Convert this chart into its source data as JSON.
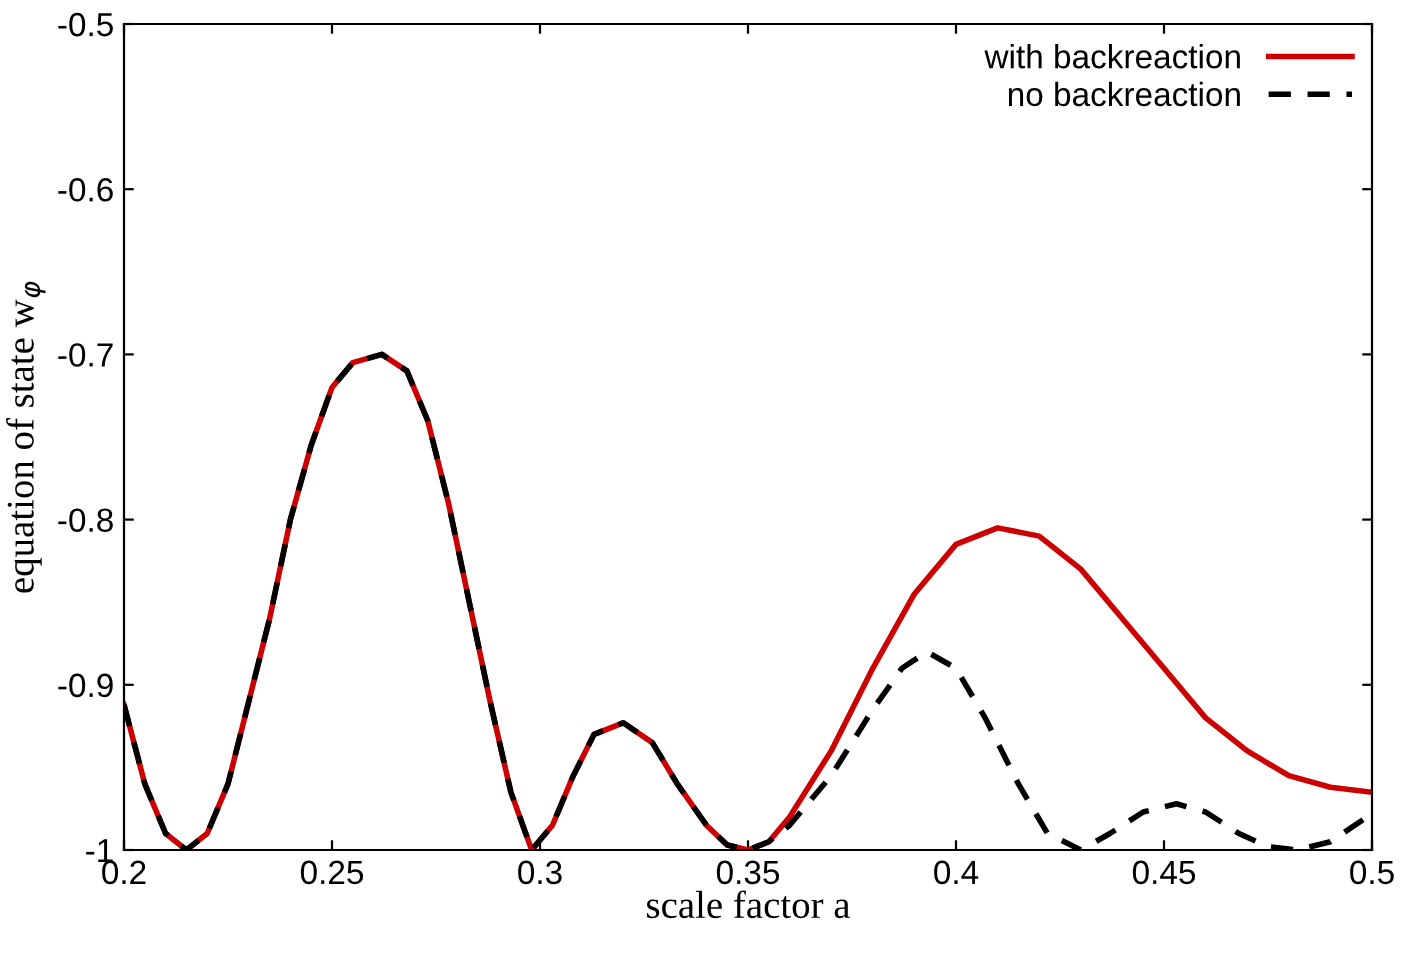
{
  "chart_data": {
    "type": "line",
    "xlabel": "scale factor a",
    "ylabel": "equation of state w$_{φ}$",
    "xlim": [
      0.2,
      0.5
    ],
    "xticks": [
      0.2,
      0.25,
      0.3,
      0.35,
      0.4,
      0.45,
      0.5
    ],
    "ylim": [
      -1,
      -0.5
    ],
    "yticks": [
      {
        "value": -1,
        "label": "-1"
      },
      {
        "value": -0.9,
        "label": "-0.9"
      },
      {
        "value": -0.8,
        "label": "-0.8"
      },
      {
        "value": -0.7,
        "label": "-0.7"
      },
      {
        "value": -0.6,
        "label": "-0.6"
      },
      {
        "value": -0.5,
        "label": "-0.5"
      }
    ],
    "grid": false,
    "legend": "top right",
    "marker": "none",
    "series": [
      {
        "name": "with backreaction",
        "color": "#cc0000",
        "line_style": "solid",
        "x": [
          0.2,
          0.205,
          0.21,
          0.215,
          0.22,
          0.225,
          0.23,
          0.235,
          0.24,
          0.245,
          0.25,
          0.255,
          0.262,
          0.268,
          0.273,
          0.278,
          0.283,
          0.288,
          0.293,
          0.298,
          0.303,
          0.308,
          0.313,
          0.32,
          0.327,
          0.333,
          0.34,
          0.345,
          0.35,
          0.355,
          0.36,
          0.37,
          0.38,
          0.39,
          0.4,
          0.41,
          0.42,
          0.43,
          0.44,
          0.45,
          0.46,
          0.47,
          0.48,
          0.49,
          0.5
        ],
        "values": [
          -0.912,
          -0.96,
          -0.99,
          -1.0,
          -0.99,
          -0.96,
          -0.91,
          -0.86,
          -0.8,
          -0.755,
          -0.72,
          -0.705,
          -0.7,
          -0.71,
          -0.74,
          -0.79,
          -0.85,
          -0.91,
          -0.965,
          -1.0,
          -0.985,
          -0.955,
          -0.93,
          -0.923,
          -0.935,
          -0.96,
          -0.985,
          -0.997,
          -1.0,
          -0.995,
          -0.98,
          -0.94,
          -0.89,
          -0.845,
          -0.815,
          -0.805,
          -0.81,
          -0.83,
          -0.86,
          -0.89,
          -0.92,
          -0.94,
          -0.955,
          -0.962,
          -0.965
        ]
      },
      {
        "name": "no backreaction",
        "color": "#000000",
        "line_style": "dashed",
        "x": [
          0.2,
          0.205,
          0.21,
          0.215,
          0.22,
          0.225,
          0.23,
          0.235,
          0.24,
          0.245,
          0.25,
          0.255,
          0.262,
          0.268,
          0.273,
          0.278,
          0.283,
          0.288,
          0.293,
          0.298,
          0.303,
          0.308,
          0.313,
          0.32,
          0.327,
          0.333,
          0.34,
          0.345,
          0.35,
          0.355,
          0.36,
          0.37,
          0.38,
          0.387,
          0.393,
          0.4,
          0.407,
          0.415,
          0.422,
          0.43,
          0.437,
          0.445,
          0.453,
          0.46,
          0.468,
          0.475,
          0.482,
          0.49,
          0.5
        ],
        "values": [
          -0.912,
          -0.96,
          -0.99,
          -1.0,
          -0.99,
          -0.96,
          -0.91,
          -0.86,
          -0.8,
          -0.755,
          -0.72,
          -0.705,
          -0.7,
          -0.71,
          -0.74,
          -0.79,
          -0.85,
          -0.91,
          -0.965,
          -1.0,
          -0.985,
          -0.955,
          -0.93,
          -0.923,
          -0.935,
          -0.96,
          -0.985,
          -0.997,
          -1.0,
          -0.995,
          -0.985,
          -0.955,
          -0.915,
          -0.89,
          -0.88,
          -0.89,
          -0.92,
          -0.96,
          -0.99,
          -1.0,
          -0.99,
          -0.977,
          -0.972,
          -0.977,
          -0.99,
          -0.998,
          -1.0,
          -0.995,
          -0.978
        ]
      }
    ]
  }
}
